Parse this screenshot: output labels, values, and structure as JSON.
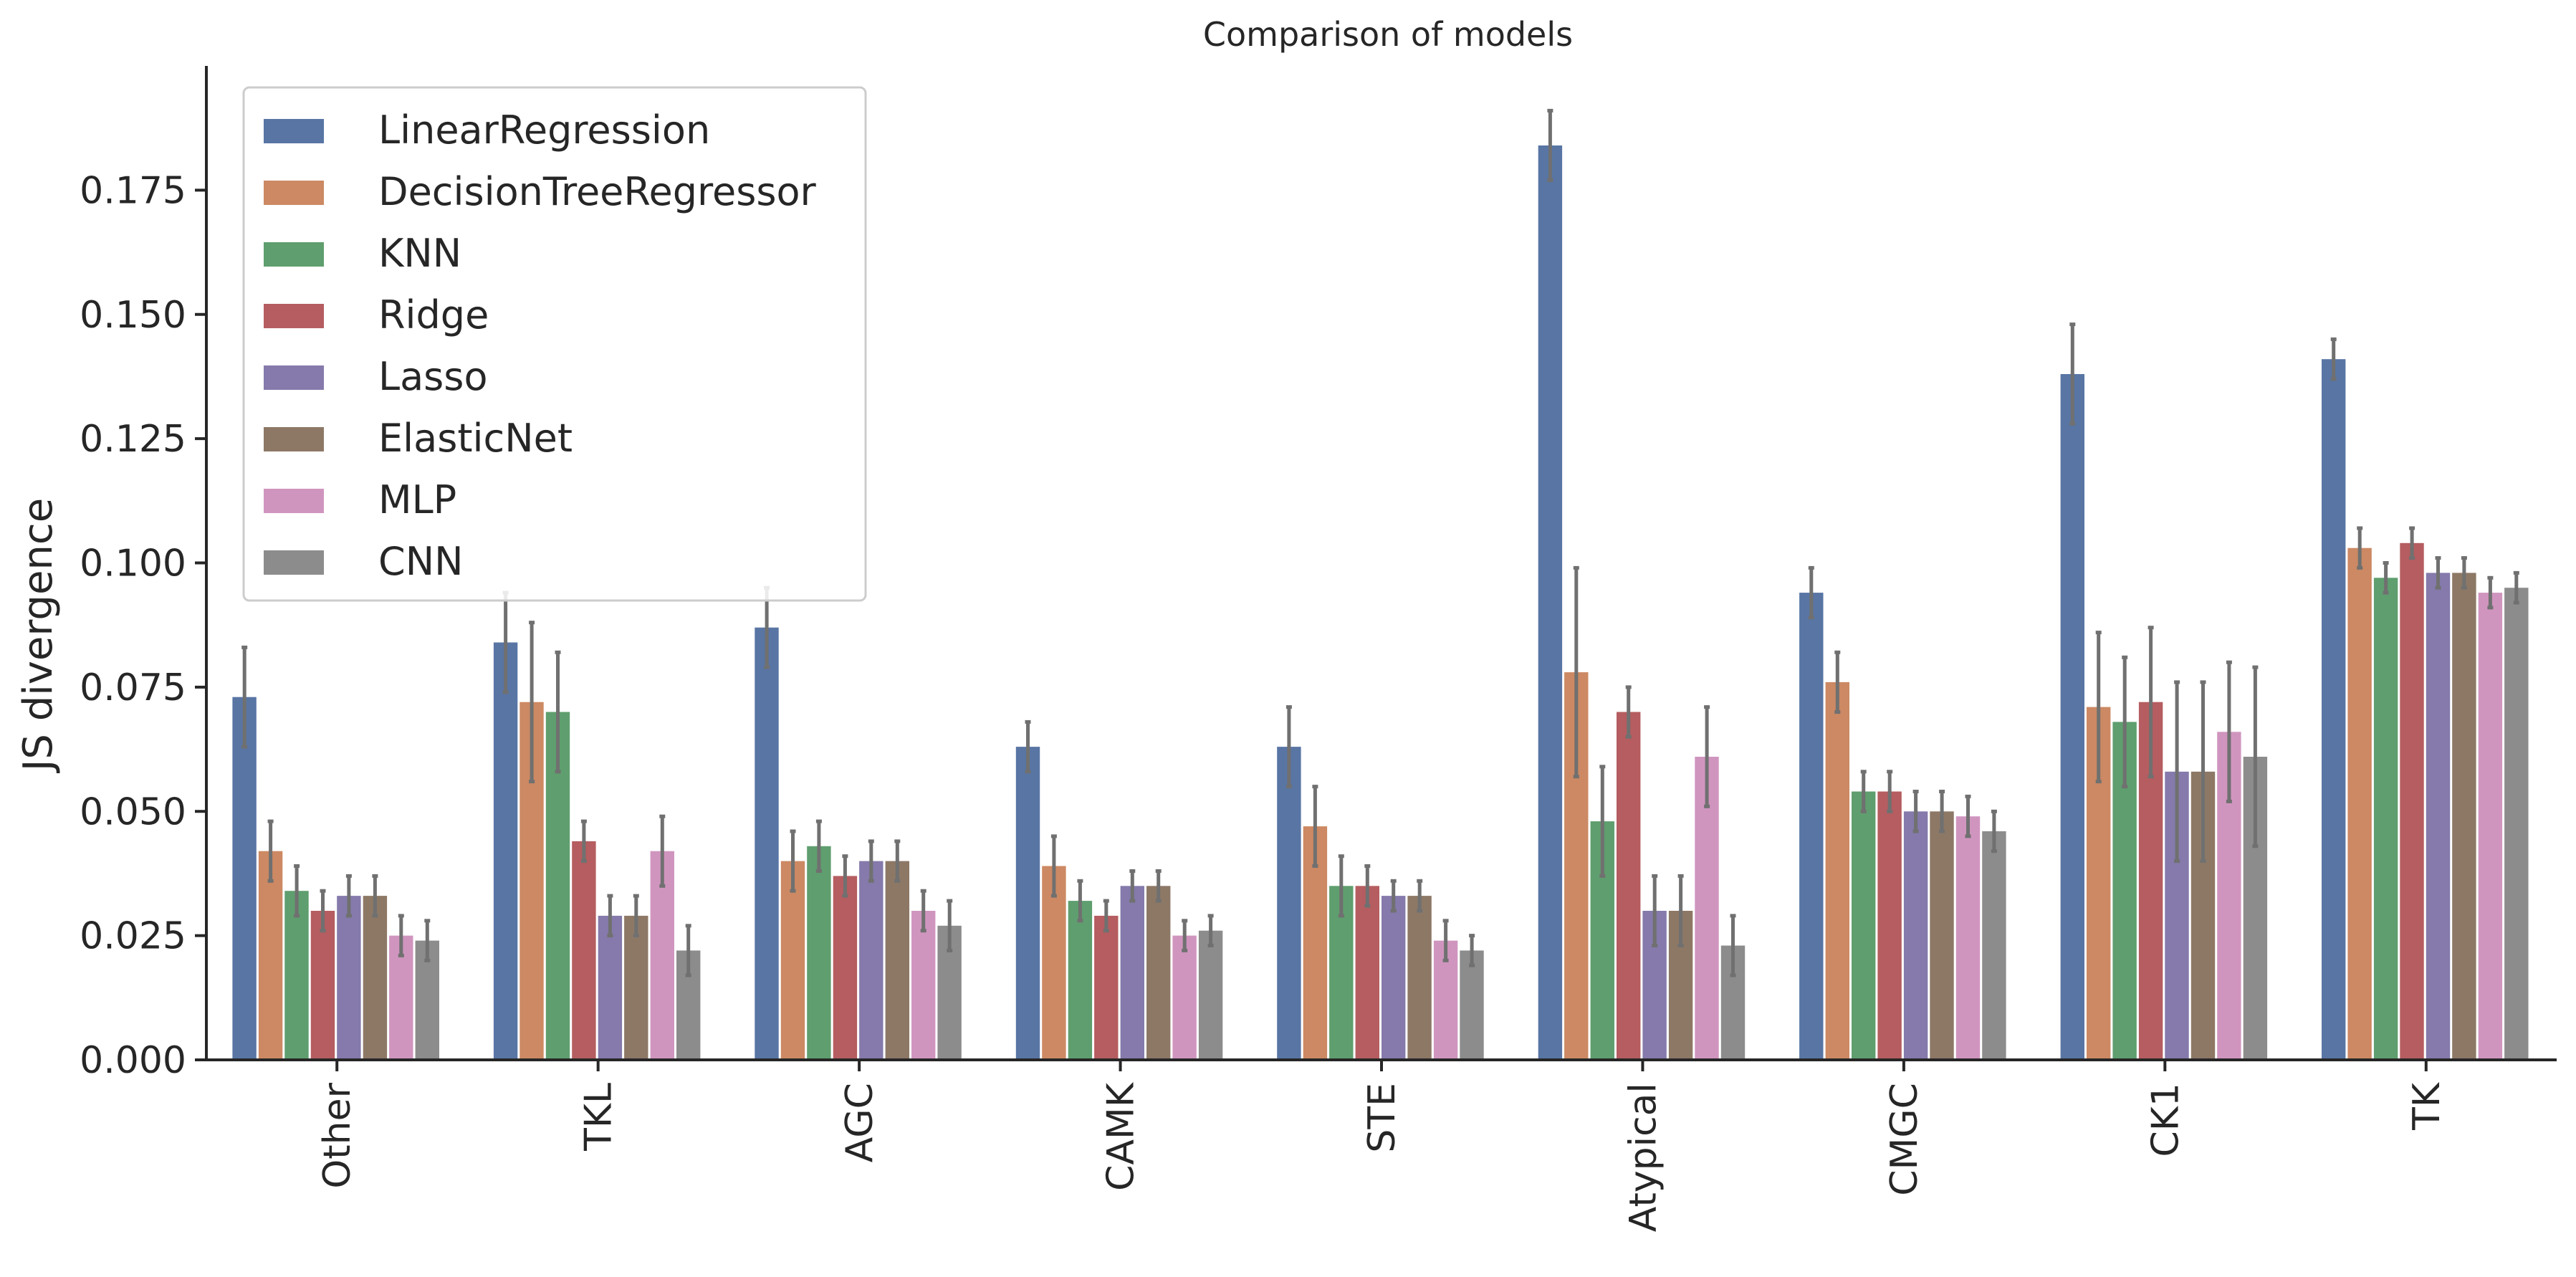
{
  "colors": {
    "LinearRegression": "#5875a4",
    "DecisionTreeRegressor": "#cc8963",
    "KNN": "#5f9e6e",
    "Ridge": "#b55d60",
    "Lasso": "#857aab",
    "ElasticNet": "#8d7866",
    "MLP": "#d095bf",
    "CNN": "#8c8c8c",
    "error_bar": "#707070",
    "axis": "#262626"
  },
  "chart_data": {
    "type": "bar",
    "title": "Comparison of models",
    "xlabel": "",
    "ylabel": "JS divergence",
    "ylim": [
      0,
      0.2
    ],
    "yticks": [
      "0.000",
      "0.025",
      "0.050",
      "0.075",
      "0.100",
      "0.125",
      "0.150",
      "0.175"
    ],
    "grid": false,
    "legend_position": "top-left",
    "categories": [
      "Other",
      "TKL",
      "AGC",
      "CAMK",
      "STE",
      "Atypical",
      "CMGC",
      "CK1",
      "TK"
    ],
    "series": [
      {
        "name": "LinearRegression",
        "values": [
          0.073,
          0.084,
          0.087,
          0.063,
          0.063,
          0.184,
          0.094,
          0.138,
          0.141
        ],
        "errors": [
          0.01,
          0.01,
          0.008,
          0.005,
          0.008,
          0.007,
          0.005,
          0.01,
          0.004
        ]
      },
      {
        "name": "DecisionTreeRegressor",
        "values": [
          0.042,
          0.072,
          0.04,
          0.039,
          0.047,
          0.078,
          0.076,
          0.071,
          0.103
        ],
        "errors": [
          0.006,
          0.016,
          0.006,
          0.006,
          0.008,
          0.021,
          0.006,
          0.015,
          0.004
        ]
      },
      {
        "name": "KNN",
        "values": [
          0.034,
          0.07,
          0.043,
          0.032,
          0.035,
          0.048,
          0.054,
          0.068,
          0.097
        ],
        "errors": [
          0.005,
          0.012,
          0.005,
          0.004,
          0.006,
          0.011,
          0.004,
          0.013,
          0.003
        ]
      },
      {
        "name": "Ridge",
        "values": [
          0.03,
          0.044,
          0.037,
          0.029,
          0.035,
          0.07,
          0.054,
          0.072,
          0.104
        ],
        "errors": [
          0.004,
          0.004,
          0.004,
          0.003,
          0.004,
          0.005,
          0.004,
          0.015,
          0.003
        ]
      },
      {
        "name": "Lasso",
        "values": [
          0.033,
          0.029,
          0.04,
          0.035,
          0.033,
          0.03,
          0.05,
          0.058,
          0.098
        ],
        "errors": [
          0.004,
          0.004,
          0.004,
          0.003,
          0.003,
          0.007,
          0.004,
          0.018,
          0.003
        ]
      },
      {
        "name": "ElasticNet",
        "values": [
          0.033,
          0.029,
          0.04,
          0.035,
          0.033,
          0.03,
          0.05,
          0.058,
          0.098
        ],
        "errors": [
          0.004,
          0.004,
          0.004,
          0.003,
          0.003,
          0.007,
          0.004,
          0.018,
          0.003
        ]
      },
      {
        "name": "MLP",
        "values": [
          0.025,
          0.042,
          0.03,
          0.025,
          0.024,
          0.061,
          0.049,
          0.066,
          0.094
        ],
        "errors": [
          0.004,
          0.007,
          0.004,
          0.003,
          0.004,
          0.01,
          0.004,
          0.014,
          0.003
        ]
      },
      {
        "name": "CNN",
        "values": [
          0.024,
          0.022,
          0.027,
          0.026,
          0.022,
          0.023,
          0.046,
          0.061,
          0.095
        ],
        "errors": [
          0.004,
          0.005,
          0.005,
          0.003,
          0.003,
          0.006,
          0.004,
          0.018,
          0.003
        ]
      }
    ]
  }
}
